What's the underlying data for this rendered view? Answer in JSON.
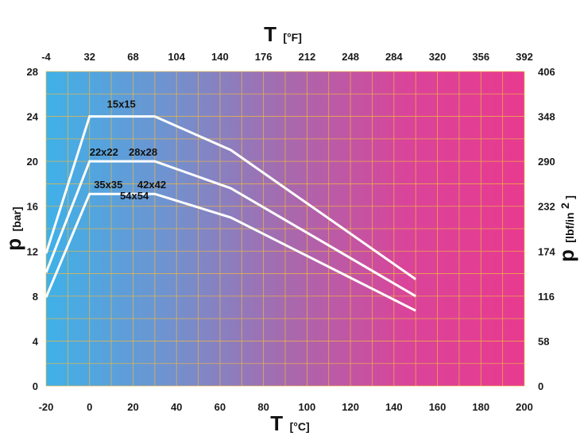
{
  "chart_data": {
    "type": "line",
    "x_bottom": {
      "label_main": "T",
      "label_unit": "[°C]",
      "range": [
        -20,
        200
      ],
      "ticks": [
        -20,
        0,
        20,
        40,
        60,
        80,
        100,
        120,
        140,
        160,
        180,
        200
      ],
      "tick_labels": [
        "-20",
        "0",
        "20",
        "40",
        "60",
        "80",
        "100",
        "120",
        "140",
        "160",
        "180",
        "200"
      ]
    },
    "x_top": {
      "label_main": "T",
      "label_unit": "[°F]",
      "tick_labels": [
        "-4",
        "32",
        "68",
        "104",
        "140",
        "176",
        "212",
        "248",
        "284",
        "320",
        "356",
        "392"
      ]
    },
    "y_left": {
      "label_main": "p",
      "label_unit": "[bar]",
      "range": [
        0,
        28
      ],
      "ticks": [
        0,
        4,
        8,
        12,
        16,
        20,
        24,
        28
      ],
      "tick_labels": [
        "0",
        "4",
        "8",
        "12",
        "16",
        "20",
        "24",
        "28"
      ]
    },
    "y_right": {
      "label_main": "p",
      "label_unit": "[lbf/in",
      "label_sup": "2",
      "label_close": "]",
      "tick_labels": [
        "0",
        "58",
        "116",
        "174",
        "232",
        "290",
        "348",
        "406"
      ]
    },
    "grid": true,
    "background_gradient": [
      "#3fb1e8",
      "#6f93d0",
      "#a66aae",
      "#d9449a",
      "#e83a8f"
    ],
    "grid_color": "#f0b840",
    "line_color": "#ffffff",
    "series": [
      {
        "x": [
          -20,
          0,
          30,
          65,
          150
        ],
        "y": [
          11.8,
          24.0,
          24.0,
          21.0,
          9.5
        ]
      },
      {
        "x": [
          -20,
          0,
          30,
          65,
          150
        ],
        "y": [
          10.1,
          20.0,
          20.0,
          17.6,
          8.0
        ]
      },
      {
        "x": [
          -20,
          0,
          30,
          65,
          150
        ],
        "y": [
          7.9,
          17.1,
          17.1,
          15.0,
          6.7
        ]
      }
    ],
    "annotations": [
      {
        "text": "15x15",
        "x": 8,
        "y": 24.8
      },
      {
        "text": "22x22",
        "x": 0,
        "y": 20.5
      },
      {
        "text": "28x28",
        "x": 18,
        "y": 20.5
      },
      {
        "text": "35x35",
        "x": 2,
        "y": 17.6
      },
      {
        "text": "42x42",
        "x": 22,
        "y": 17.6
      },
      {
        "text": "54x54",
        "x": 14,
        "y": 16.6
      }
    ]
  }
}
